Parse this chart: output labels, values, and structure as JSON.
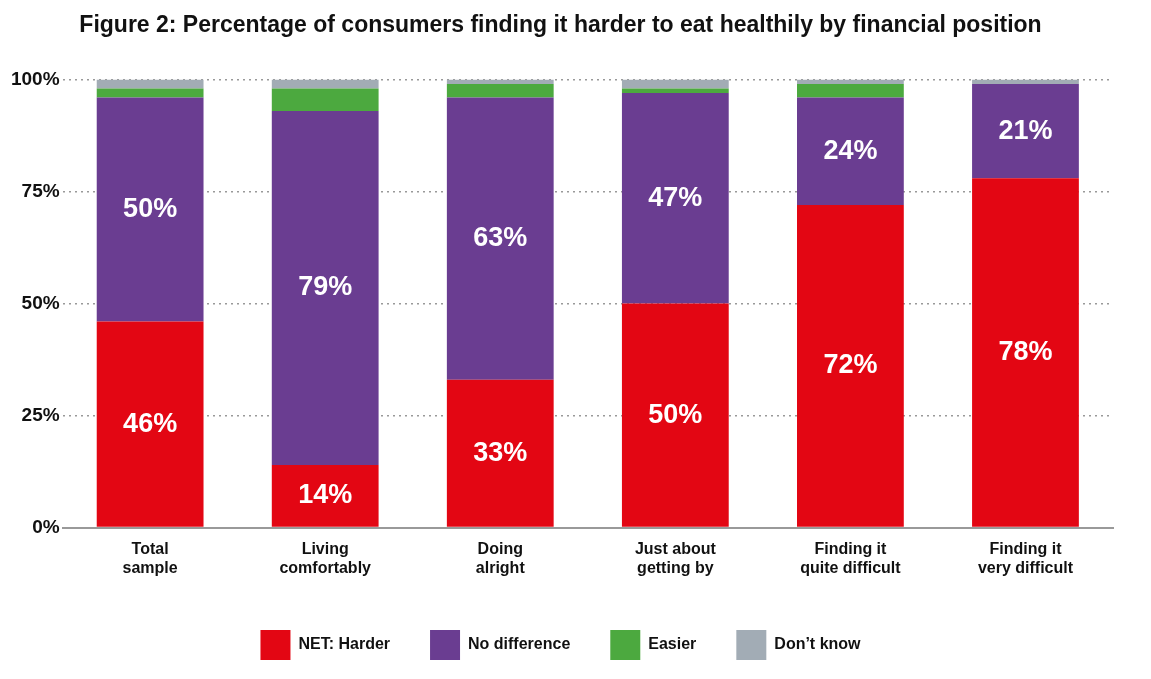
{
  "chart_data": {
    "type": "bar",
    "title": "Figure 2: Percentage of consumers finding it harder to eat healthily by financial position",
    "categories": [
      "Total sample",
      "Living comfortably",
      "Doing alright",
      "Just about getting by",
      "Finding it quite difficult",
      "Finding it very difficult"
    ],
    "stacked": true,
    "ylim": [
      0,
      100
    ],
    "yticks": [
      {
        "value": 0,
        "label": "0%"
      },
      {
        "value": 25,
        "label": "25%"
      },
      {
        "value": 50,
        "label": "50%"
      },
      {
        "value": 75,
        "label": "75%"
      },
      {
        "value": 100,
        "label": "100%"
      }
    ],
    "grid": "y",
    "legend": "bottom",
    "series": [
      {
        "name": "NET: Harder",
        "color": "#e30613",
        "values": [
          46,
          14,
          33,
          50,
          72,
          78
        ],
        "value_labels": [
          "46%",
          "14%",
          "33%",
          "50%",
          "72%",
          "78%"
        ]
      },
      {
        "name": "No difference",
        "color": "#6a3d91",
        "values": [
          50,
          79,
          63,
          47,
          24,
          21
        ],
        "value_labels": [
          "50%",
          "79%",
          "63%",
          "47%",
          "24%",
          "21%"
        ]
      },
      {
        "name": "Easier",
        "color": "#4ca93f",
        "values": [
          2,
          5,
          3,
          1,
          3,
          0
        ]
      },
      {
        "name": "Don’t know",
        "color": "#a2acb5",
        "values": [
          2,
          2,
          1,
          2,
          1,
          1
        ]
      }
    ]
  }
}
